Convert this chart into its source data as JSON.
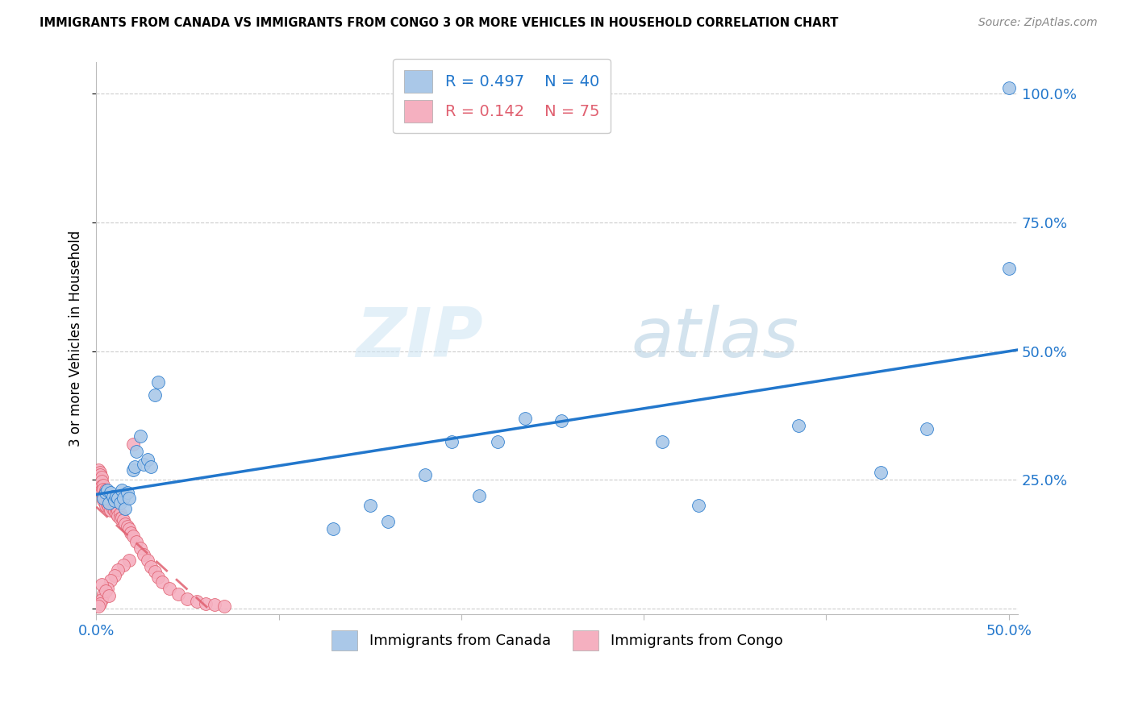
{
  "title": "IMMIGRANTS FROM CANADA VS IMMIGRANTS FROM CONGO 3 OR MORE VEHICLES IN HOUSEHOLD CORRELATION CHART",
  "source": "Source: ZipAtlas.com",
  "ylabel": "3 or more Vehicles in Household",
  "x_min": 0.0,
  "x_max": 0.505,
  "y_min": -0.01,
  "y_max": 1.06,
  "x_ticks": [
    0.0,
    0.1,
    0.2,
    0.3,
    0.4,
    0.5
  ],
  "x_tick_labels": [
    "0.0%",
    "",
    "",
    "",
    "",
    "50.0%"
  ],
  "y_ticks": [
    0.0,
    0.25,
    0.5,
    0.75,
    1.0
  ],
  "y_tick_labels_right": [
    "",
    "25.0%",
    "50.0%",
    "75.0%",
    "100.0%"
  ],
  "canada_color": "#aac8e8",
  "canada_line_color": "#2277cc",
  "congo_color": "#f5b0c0",
  "congo_line_color": "#e06070",
  "watermark_zip": "ZIP",
  "watermark_atlas": "atlas",
  "canada_points_x": [
    0.004,
    0.005,
    0.006,
    0.007,
    0.008,
    0.009,
    0.01,
    0.011,
    0.012,
    0.013,
    0.014,
    0.015,
    0.016,
    0.017,
    0.018,
    0.02,
    0.021,
    0.022,
    0.024,
    0.026,
    0.028,
    0.03,
    0.032,
    0.034,
    0.13,
    0.15,
    0.16,
    0.18,
    0.195,
    0.21,
    0.22,
    0.235,
    0.255,
    0.31,
    0.33,
    0.385,
    0.43,
    0.455,
    0.5
  ],
  "canada_points_y": [
    0.215,
    0.225,
    0.23,
    0.205,
    0.225,
    0.218,
    0.21,
    0.218,
    0.215,
    0.205,
    0.23,
    0.215,
    0.195,
    0.225,
    0.215,
    0.27,
    0.275,
    0.305,
    0.335,
    0.28,
    0.29,
    0.275,
    0.415,
    0.44,
    0.155,
    0.2,
    0.17,
    0.26,
    0.325,
    0.22,
    0.325,
    0.37,
    0.365,
    0.325,
    0.2,
    0.355,
    0.265,
    0.35,
    0.66
  ],
  "canada_outlier_x": [
    0.5
  ],
  "canada_outlier_y": [
    1.01
  ],
  "congo_points_x": [
    0.001,
    0.001,
    0.001,
    0.002,
    0.002,
    0.002,
    0.002,
    0.003,
    0.003,
    0.003,
    0.003,
    0.003,
    0.004,
    0.004,
    0.004,
    0.004,
    0.005,
    0.005,
    0.005,
    0.005,
    0.006,
    0.006,
    0.006,
    0.007,
    0.007,
    0.007,
    0.008,
    0.008,
    0.008,
    0.009,
    0.009,
    0.01,
    0.01,
    0.011,
    0.011,
    0.012,
    0.012,
    0.013,
    0.013,
    0.014,
    0.015,
    0.016,
    0.017,
    0.018,
    0.019,
    0.02,
    0.022,
    0.024,
    0.026,
    0.028,
    0.03,
    0.032,
    0.034,
    0.036,
    0.04,
    0.045,
    0.05,
    0.055,
    0.06,
    0.065,
    0.07,
    0.02,
    0.018,
    0.015,
    0.012,
    0.01,
    0.008,
    0.006,
    0.004,
    0.003,
    0.002,
    0.001,
    0.003,
    0.005,
    0.007
  ],
  "congo_points_y": [
    0.27,
    0.255,
    0.245,
    0.265,
    0.26,
    0.25,
    0.24,
    0.255,
    0.248,
    0.238,
    0.23,
    0.225,
    0.24,
    0.232,
    0.22,
    0.21,
    0.23,
    0.222,
    0.21,
    0.2,
    0.222,
    0.212,
    0.202,
    0.215,
    0.205,
    0.198,
    0.21,
    0.2,
    0.192,
    0.205,
    0.195,
    0.2,
    0.19,
    0.195,
    0.185,
    0.19,
    0.18,
    0.185,
    0.175,
    0.178,
    0.172,
    0.165,
    0.16,
    0.155,
    0.148,
    0.142,
    0.13,
    0.118,
    0.105,
    0.095,
    0.082,
    0.072,
    0.062,
    0.052,
    0.04,
    0.028,
    0.02,
    0.015,
    0.01,
    0.008,
    0.006,
    0.32,
    0.095,
    0.085,
    0.075,
    0.065,
    0.055,
    0.04,
    0.028,
    0.018,
    0.01,
    0.005,
    0.048,
    0.035,
    0.025
  ]
}
